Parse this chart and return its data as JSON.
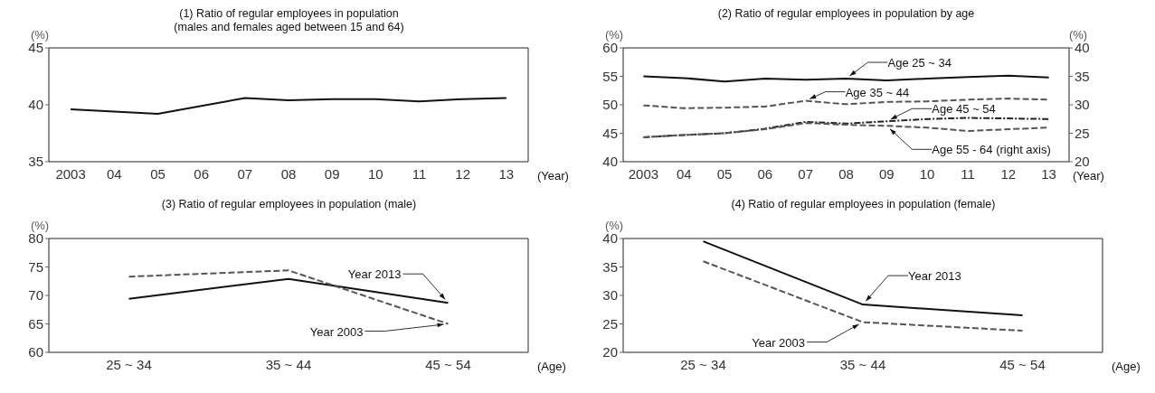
{
  "chart_data": [
    {
      "type": "line",
      "title": "(1) Ratio of regular employees in population",
      "subtitle": "(males and females aged between 15 and 64)",
      "ylabel": "(%)",
      "xlabel": "(Year)",
      "marker": "none",
      "categories": [
        "2003",
        "04",
        "05",
        "06",
        "07",
        "08",
        "09",
        "10",
        "11",
        "12",
        "13"
      ],
      "ylim": [
        35,
        45
      ],
      "yticks": [
        35,
        40,
        45
      ],
      "series": [
        {
          "color": "#111111",
          "line_style": "solid",
          "values": [
            39.6,
            39.4,
            39.2,
            39.9,
            40.6,
            40.4,
            40.5,
            40.5,
            40.3,
            40.5,
            40.6
          ]
        }
      ]
    },
    {
      "type": "line",
      "title": "(2) Ratio of regular employees in population by age",
      "ylabel": "(%)",
      "y2label": "(%)",
      "xlabel": "(Year)",
      "marker": "none",
      "categories": [
        "2003",
        "04",
        "05",
        "06",
        "07",
        "08",
        "09",
        "10",
        "11",
        "12",
        "13"
      ],
      "ylim": [
        40,
        60
      ],
      "yticks": [
        40,
        45,
        50,
        55,
        60
      ],
      "y2lim": [
        20,
        40
      ],
      "y2ticks": [
        20,
        25,
        30,
        35,
        40
      ],
      "series": [
        {
          "name": "Age 25 ~ 34",
          "color": "#111111",
          "line_style": "solid",
          "values": [
            55.0,
            54.7,
            54.1,
            54.6,
            54.4,
            54.6,
            54.3,
            54.6,
            54.9,
            55.1,
            54.8
          ]
        },
        {
          "name": "Age 35 ~ 44",
          "color": "#555555",
          "line_style": "dashed",
          "values": [
            49.9,
            49.4,
            49.5,
            49.7,
            50.7,
            50.1,
            50.5,
            50.6,
            50.9,
            51.1,
            50.9
          ]
        },
        {
          "name": "Age 45 ~ 54",
          "color": "#222222",
          "line_style": "dashdot",
          "values": [
            44.3,
            44.7,
            45.0,
            45.8,
            47.0,
            46.7,
            47.1,
            47.5,
            47.7,
            47.6,
            47.5
          ]
        },
        {
          "name": "Age 55 - 64 (right axis)",
          "color": "#555555",
          "line_style": "dashed",
          "axis": "y2",
          "values": [
            24.3,
            24.7,
            25.0,
            25.7,
            26.8,
            26.5,
            26.3,
            26.0,
            25.4,
            25.7,
            26.0
          ]
        }
      ]
    },
    {
      "type": "line",
      "title": "(3) Ratio of regular employees in population (male)",
      "ylabel": "(%)",
      "xlabel": "(Age)",
      "marker": "none",
      "categories": [
        "25 ~ 34",
        "35 ~ 44",
        "45 ~ 54"
      ],
      "ylim": [
        60,
        80
      ],
      "yticks": [
        60,
        65,
        70,
        75,
        80
      ],
      "series": [
        {
          "name": "Year 2013",
          "color": "#111111",
          "line_style": "solid",
          "values": [
            69.4,
            72.9,
            68.7
          ]
        },
        {
          "name": "Year 2003",
          "color": "#555555",
          "line_style": "dashed",
          "values": [
            73.3,
            74.4,
            65.0
          ]
        }
      ]
    },
    {
      "type": "line",
      "title": "(4) Ratio of regular employees in population (female)",
      "ylabel": "(%)",
      "xlabel": "(Age)",
      "marker": "none",
      "categories": [
        "25 ~ 34",
        "35 ~ 44",
        "45 ~ 54"
      ],
      "ylim": [
        20,
        40
      ],
      "yticks": [
        20,
        25,
        30,
        35,
        40
      ],
      "series": [
        {
          "name": "Year 2013",
          "color": "#111111",
          "line_style": "solid",
          "values": [
            39.5,
            28.4,
            26.5
          ]
        },
        {
          "name": "Year 2003",
          "color": "#555555",
          "line_style": "dashed",
          "values": [
            36.0,
            25.3,
            23.8
          ]
        }
      ]
    }
  ]
}
